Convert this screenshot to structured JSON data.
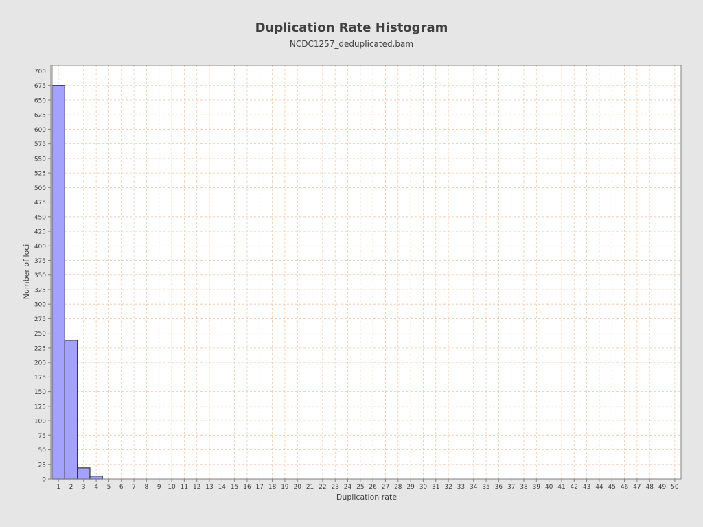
{
  "chart_data": {
    "type": "bar",
    "title": "Duplication Rate Histogram",
    "subtitle": "NCDC1257_deduplicated.bam",
    "xlabel": "Duplication rate",
    "ylabel": "Number of loci",
    "x_ticks": [
      1,
      2,
      3,
      4,
      5,
      6,
      7,
      8,
      9,
      10,
      11,
      12,
      13,
      14,
      15,
      16,
      17,
      18,
      19,
      20,
      21,
      22,
      23,
      24,
      25,
      26,
      27,
      28,
      29,
      30,
      31,
      32,
      33,
      34,
      35,
      36,
      37,
      38,
      39,
      40,
      41,
      42,
      43,
      44,
      45,
      46,
      47,
      48,
      49,
      50
    ],
    "xlim": [
      0.5,
      50.5
    ],
    "ylim": [
      0,
      710
    ],
    "y_ticks": [
      0,
      25,
      50,
      75,
      100,
      125,
      150,
      175,
      200,
      225,
      250,
      275,
      300,
      325,
      350,
      375,
      400,
      425,
      450,
      475,
      500,
      525,
      550,
      575,
      600,
      625,
      650,
      675,
      700
    ],
    "bars": [
      {
        "x": 1,
        "value": 675
      },
      {
        "x": 2,
        "value": 238
      },
      {
        "x": 3,
        "value": 19
      },
      {
        "x": 4,
        "value": 5
      }
    ],
    "grid": true,
    "colors": {
      "bar_fill": "#a3a3ff",
      "bar_stroke": "#333333",
      "grid": "#f0c8a8",
      "plot_bg": "#ffffff",
      "background": "#e6e6e6"
    }
  }
}
